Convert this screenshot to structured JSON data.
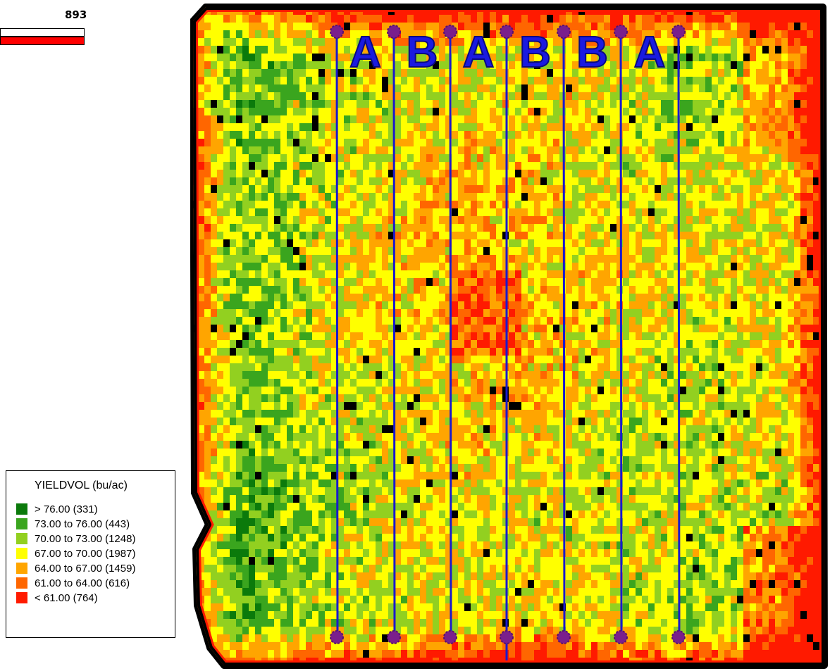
{
  "scale_bar": {
    "label": "893"
  },
  "legend": {
    "title": "YIELDVOL (bu/ac)",
    "classes": [
      {
        "label": "> 76.00 (331)",
        "color": "#0b7a0b",
        "min": 76,
        "max": 80,
        "count": 331
      },
      {
        "label": "73.00 to 76.00 (443)",
        "color": "#3aa51e",
        "min": 73,
        "max": 76,
        "count": 443
      },
      {
        "label": "70.00 to 73.00 (1248)",
        "color": "#92d020",
        "min": 70,
        "max": 73,
        "count": 1248
      },
      {
        "label": "67.00 to 70.00 (1987)",
        "color": "#ffff00",
        "min": 67,
        "max": 70,
        "count": 1987
      },
      {
        "label": "64.00 to 67.00 (1459)",
        "color": "#ffa500",
        "min": 64,
        "max": 67,
        "count": 1459
      },
      {
        "label": "61.00 to 64.00 (616)",
        "color": "#ff6600",
        "min": 61,
        "max": 64,
        "count": 616
      },
      {
        "label": "< 61.00 (764)",
        "color": "#ff1a00",
        "min": 55,
        "max": 61,
        "count": 764
      }
    ]
  },
  "strips": {
    "labels": [
      "A",
      "B",
      "A",
      "B",
      "B",
      "A"
    ],
    "line_color": "#1a1acc",
    "marker_color": "#7a1f8c",
    "label_color": "#1a1ae0"
  },
  "field": {
    "border_color": "#000000"
  }
}
